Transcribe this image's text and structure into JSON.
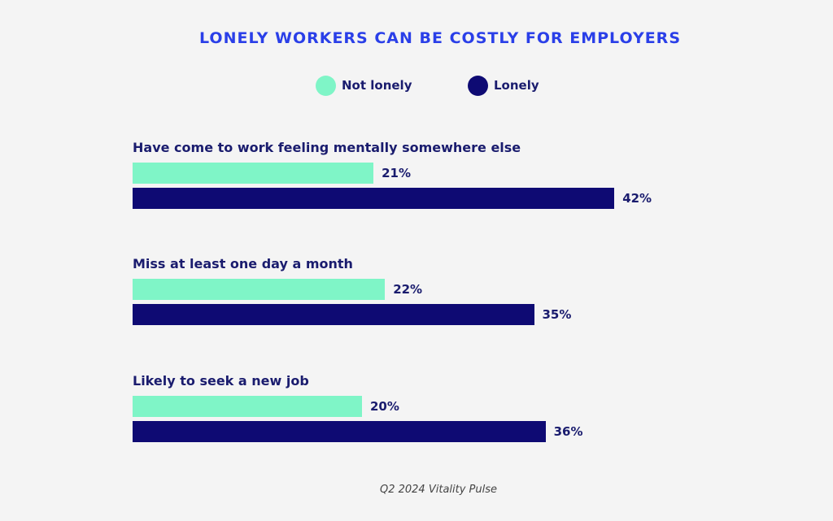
{
  "colors": {
    "not_lonely": "#7ff5c7",
    "lonely": "#0e0a73",
    "title": "#2a3fe8",
    "text": "#1a1c6e"
  },
  "legend": {
    "not_lonely": "Not lonely",
    "lonely": "Lonely"
  },
  "source": "Q2 2024 Vitality Pulse",
  "chart_data": {
    "type": "bar",
    "orientation": "horizontal",
    "title": "LONELY WORKERS CAN BE COSTLY FOR EMPLOYERS",
    "legend_position": "top",
    "grid": false,
    "xlim": [
      0,
      50
    ],
    "categories": [
      "Have come to work feeling mentally somewhere else",
      "Miss at least one day a month",
      "Likely to seek a new job"
    ],
    "series": [
      {
        "name": "Not lonely",
        "values": [
          21,
          22,
          20
        ],
        "labels": [
          "21%",
          "22%",
          "20%"
        ]
      },
      {
        "name": "Lonely",
        "values": [
          42,
          35,
          36
        ],
        "labels": [
          "42%",
          "35%",
          "36%"
        ]
      }
    ]
  }
}
